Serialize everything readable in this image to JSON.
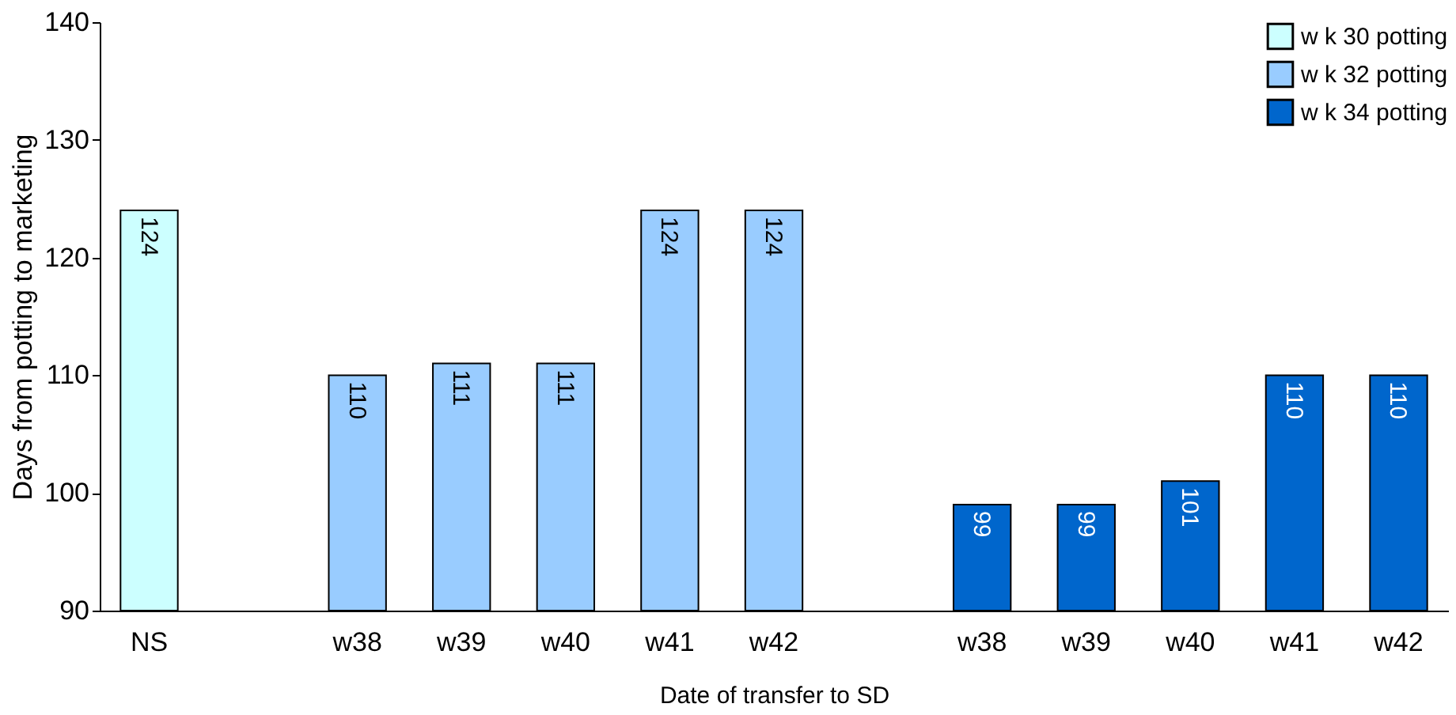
{
  "chart_data": {
    "type": "bar",
    "xlabel": "Date of transfer to SD",
    "ylabel": "Days from potting to marketing",
    "categories": [
      "NS",
      null,
      "w38",
      "w39",
      "w40",
      "w41",
      "w42",
      null,
      "w38",
      "w39",
      "w40",
      "w41",
      "w42"
    ],
    "series": [
      {
        "name": "w k 30 potting",
        "color": "#ccffff",
        "values": [
          124,
          null,
          null,
          null,
          null,
          null,
          null,
          null,
          null,
          null,
          null,
          null,
          null
        ]
      },
      {
        "name": "w k 32 potting",
        "color": "#99ccff",
        "values": [
          null,
          null,
          110,
          111,
          111,
          124,
          124,
          null,
          null,
          null,
          null,
          null,
          null
        ]
      },
      {
        "name": "w k 34 potting",
        "color": "#0066cc",
        "values": [
          null,
          null,
          null,
          null,
          null,
          null,
          null,
          null,
          99,
          99,
          101,
          110,
          110
        ]
      }
    ],
    "ylim": [
      90,
      140
    ],
    "yticks": [
      90,
      100,
      110,
      120,
      130,
      140
    ],
    "grid": false,
    "legend": "top right",
    "data_labels": true
  }
}
